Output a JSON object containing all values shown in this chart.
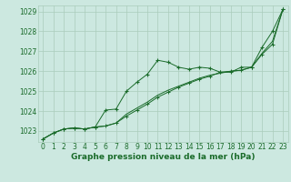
{
  "background_color": "#cce8e0",
  "grid_color": "#aaccbb",
  "line_color": "#1a6b2a",
  "text_color": "#1a6b2a",
  "xlabel": "Graphe pression niveau de la mer (hPa)",
  "ylim": [
    1022.45,
    1029.3
  ],
  "xlim": [
    -0.5,
    23.5
  ],
  "yticks": [
    1023,
    1024,
    1025,
    1026,
    1027,
    1028,
    1029
  ],
  "xticks": [
    0,
    1,
    2,
    3,
    4,
    5,
    6,
    7,
    8,
    9,
    10,
    11,
    12,
    13,
    14,
    15,
    16,
    17,
    18,
    19,
    20,
    21,
    22,
    23
  ],
  "series1_x": [
    0,
    1,
    2,
    3,
    4,
    5,
    6,
    7,
    8,
    9,
    10,
    11,
    12,
    13,
    14,
    15,
    16,
    17,
    18,
    19,
    20,
    21,
    22,
    23
  ],
  "series1_y": [
    1022.6,
    1022.9,
    1023.1,
    1023.15,
    1023.1,
    1023.2,
    1024.05,
    1024.1,
    1025.0,
    1025.45,
    1025.85,
    1026.55,
    1026.45,
    1026.2,
    1026.1,
    1026.2,
    1026.15,
    1025.95,
    1025.95,
    1026.2,
    1026.2,
    1027.2,
    1028.0,
    1029.1
  ],
  "series2_x": [
    0,
    1,
    2,
    3,
    4,
    5,
    6,
    7,
    8,
    9,
    10,
    11,
    12,
    13,
    14,
    15,
    16,
    17,
    18,
    19,
    20,
    21,
    22,
    23
  ],
  "series2_y": [
    1022.6,
    1022.9,
    1023.1,
    1023.15,
    1023.1,
    1023.2,
    1023.25,
    1023.4,
    1023.75,
    1024.05,
    1024.35,
    1024.7,
    1024.95,
    1025.2,
    1025.4,
    1025.6,
    1025.75,
    1025.95,
    1026.0,
    1026.05,
    1026.2,
    1026.85,
    1027.35,
    1029.1
  ],
  "series3_x": [
    0,
    1,
    2,
    3,
    4,
    5,
    6,
    7,
    8,
    9,
    10,
    11,
    12,
    13,
    14,
    15,
    16,
    17,
    18,
    19,
    20,
    21,
    22,
    23
  ],
  "series3_y": [
    1022.6,
    1022.9,
    1023.1,
    1023.15,
    1023.1,
    1023.2,
    1023.25,
    1023.4,
    1023.85,
    1024.15,
    1024.45,
    1024.8,
    1025.05,
    1025.25,
    1025.45,
    1025.65,
    1025.8,
    1025.9,
    1026.0,
    1026.05,
    1026.2,
    1026.9,
    1027.5,
    1029.1
  ],
  "tick_fontsize": 5.5,
  "label_fontsize": 6.5
}
